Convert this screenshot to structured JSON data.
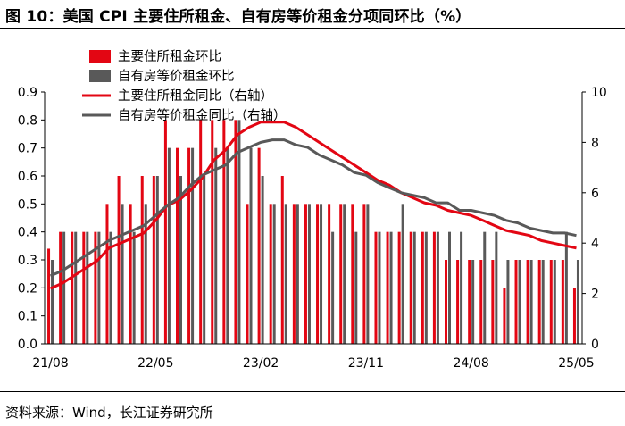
{
  "figure": {
    "title": "图 10：美国 CPI 主要住所租金、自有房等价租金分项同环比（%）",
    "source": "资料来源：Wind，长江证券研究所"
  },
  "chart_data": {
    "type": "bar",
    "x_tick_labels": [
      "21/08",
      "22/05",
      "23/02",
      "23/11",
      "24/08",
      "25/05"
    ],
    "categories": [
      "21/08",
      "21/09",
      "21/10",
      "21/11",
      "21/12",
      "22/01",
      "22/02",
      "22/03",
      "22/04",
      "22/05",
      "22/06",
      "22/07",
      "22/08",
      "22/09",
      "22/10",
      "22/11",
      "22/12",
      "23/01",
      "23/02",
      "23/03",
      "23/04",
      "23/05",
      "23/06",
      "23/07",
      "23/08",
      "23/09",
      "23/10",
      "23/11",
      "23/12",
      "24/01",
      "24/02",
      "24/03",
      "24/04",
      "24/05",
      "24/06",
      "24/07",
      "24/08",
      "24/09",
      "24/10",
      "24/11",
      "24/12",
      "25/01",
      "25/02",
      "25/03",
      "25/04",
      "25/05"
    ],
    "left_axis": {
      "ylim": [
        0,
        0.9
      ],
      "ticks": [
        "0.0",
        "0.1",
        "0.2",
        "0.3",
        "0.4",
        "0.5",
        "0.6",
        "0.7",
        "0.8",
        "0.9"
      ]
    },
    "right_axis": {
      "ylim": [
        0,
        10
      ],
      "ticks": [
        "0",
        "2",
        "4",
        "6",
        "8",
        "10"
      ]
    },
    "series": [
      {
        "name": "主要住所租金环比",
        "type": "bar",
        "axis": "left",
        "color": "#e30613",
        "values": [
          0.34,
          0.4,
          0.4,
          0.4,
          0.4,
          0.5,
          0.6,
          0.5,
          0.6,
          0.6,
          0.8,
          0.7,
          0.7,
          0.8,
          0.8,
          0.8,
          0.8,
          0.5,
          0.7,
          0.5,
          0.6,
          0.5,
          0.5,
          0.5,
          0.5,
          0.5,
          0.5,
          0.5,
          0.4,
          0.4,
          0.4,
          0.4,
          0.4,
          0.4,
          0.3,
          0.3,
          0.3,
          0.3,
          0.3,
          0.2,
          0.3,
          0.3,
          0.3,
          0.3,
          0.3,
          0.2
        ]
      },
      {
        "name": "自有房等价租金环比",
        "type": "bar",
        "axis": "left",
        "color": "#595959",
        "values": [
          0.3,
          0.4,
          0.4,
          0.4,
          0.4,
          0.4,
          0.5,
          0.4,
          0.5,
          0.6,
          0.7,
          0.6,
          0.7,
          0.6,
          0.7,
          0.7,
          0.8,
          0.7,
          0.6,
          0.5,
          0.5,
          0.5,
          0.5,
          0.5,
          0.4,
          0.5,
          0.4,
          0.5,
          0.4,
          0.4,
          0.5,
          0.4,
          0.4,
          0.4,
          0.4,
          0.4,
          0.3,
          0.4,
          0.4,
          0.3,
          0.3,
          0.3,
          0.3,
          0.3,
          0.4,
          0.3
        ]
      },
      {
        "name": "主要住所租金同比（右轴）",
        "type": "line",
        "axis": "right",
        "color": "#e30613",
        "values": [
          2.2,
          2.4,
          2.7,
          3.0,
          3.3,
          3.8,
          4.0,
          4.2,
          4.4,
          4.9,
          5.5,
          5.7,
          6.1,
          6.6,
          7.3,
          7.7,
          8.3,
          8.6,
          8.8,
          8.8,
          8.8,
          8.6,
          8.3,
          8.0,
          7.7,
          7.4,
          7.1,
          6.8,
          6.5,
          6.3,
          6.0,
          5.8,
          5.6,
          5.5,
          5.3,
          5.2,
          5.1,
          4.9,
          4.7,
          4.5,
          4.4,
          4.3,
          4.1,
          4.0,
          3.9,
          3.8
        ]
      },
      {
        "name": "自有房等价租金同比（右轴）",
        "type": "line",
        "axis": "right",
        "color": "#595959",
        "values": [
          2.7,
          2.9,
          3.2,
          3.5,
          3.8,
          4.1,
          4.3,
          4.5,
          4.7,
          5.1,
          5.5,
          5.8,
          6.3,
          6.7,
          6.9,
          7.1,
          7.6,
          7.8,
          8.0,
          8.1,
          8.1,
          7.9,
          7.8,
          7.5,
          7.3,
          7.1,
          6.8,
          6.7,
          6.4,
          6.2,
          6.0,
          5.9,
          5.8,
          5.6,
          5.6,
          5.3,
          5.3,
          5.2,
          5.1,
          4.9,
          4.8,
          4.6,
          4.5,
          4.4,
          4.4,
          4.3
        ]
      }
    ],
    "legend_placement": "top-left",
    "grid": false
  }
}
